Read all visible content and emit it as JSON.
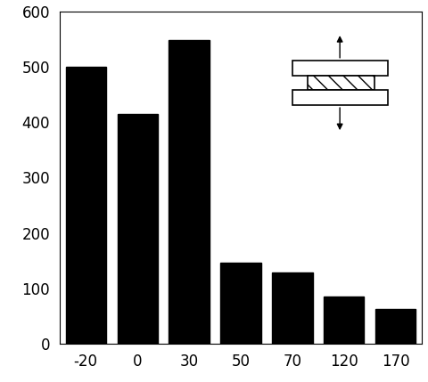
{
  "chart_data": {
    "type": "bar",
    "categories": [
      "-20",
      "0",
      "30",
      "50",
      "70",
      "120",
      "170"
    ],
    "values": [
      500,
      415,
      548,
      147,
      128,
      85,
      63
    ],
    "color": "#000000",
    "ylim": [
      0,
      600
    ],
    "yticks": [
      0,
      100,
      200,
      300,
      400,
      500,
      600
    ],
    "grid": false
  }
}
